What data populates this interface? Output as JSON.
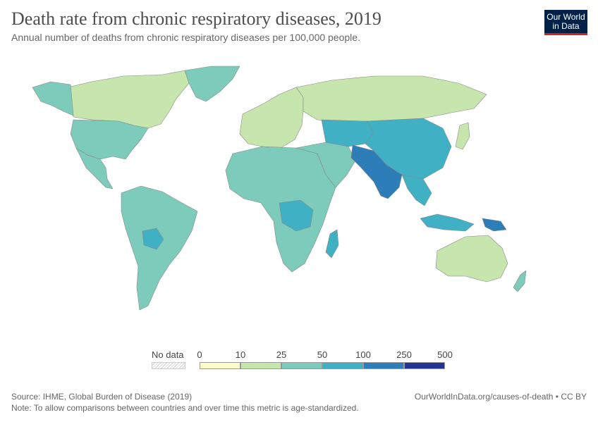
{
  "header": {
    "title": "Death rate from chronic respiratory diseases, 2019",
    "subtitle": "Annual number of deaths from chronic respiratory diseases per 100,000 people."
  },
  "logo": {
    "line1": "Our World",
    "line2": "in Data"
  },
  "legend": {
    "no_data_label": "No data",
    "ticks": [
      "0",
      "10",
      "25",
      "50",
      "100",
      "250",
      "500"
    ],
    "bin_colors": [
      "#fdfccb",
      "#c7e6ad",
      "#7dcbba",
      "#40b1c5",
      "#2c7db8",
      "#253494"
    ]
  },
  "regions": [
    {
      "name": "North America",
      "category": "10-25"
    },
    {
      "name": "Alaska",
      "category": "25-50"
    },
    {
      "name": "Greenland",
      "category": "25-50"
    },
    {
      "name": "United States",
      "category": "25-50"
    },
    {
      "name": "Mexico",
      "category": "25-50"
    },
    {
      "name": "South America",
      "category": "25-50"
    },
    {
      "name": "Bolivia",
      "category": "50-100"
    },
    {
      "name": "Europe",
      "category": "10-25"
    },
    {
      "name": "Russia",
      "category": "10-25"
    },
    {
      "name": "Africa",
      "category": "25-50"
    },
    {
      "name": "Central Africa",
      "category": "50-100"
    },
    {
      "name": "Middle East",
      "category": "25-50"
    },
    {
      "name": "Central Asia",
      "category": "50-100"
    },
    {
      "name": "China",
      "category": "50-100"
    },
    {
      "name": "India",
      "category": "100-250"
    },
    {
      "name": "Southeast Asia",
      "category": "50-100"
    },
    {
      "name": "Japan",
      "category": "10-25"
    },
    {
      "name": "Indonesia",
      "category": "50-100"
    },
    {
      "name": "Papua New Guinea",
      "category": "100-250"
    },
    {
      "name": "Australia",
      "category": "10-25"
    },
    {
      "name": "New Zealand",
      "category": "25-50"
    },
    {
      "name": "Madagascar",
      "category": "50-100"
    }
  ],
  "footer": {
    "source": "Source: IHME, Global Burden of Disease (2019)",
    "note": "Note: To allow comparisons between countries and over time this metric is age-standardized.",
    "right": "OurWorldInData.org/causes-of-death • CC BY"
  }
}
